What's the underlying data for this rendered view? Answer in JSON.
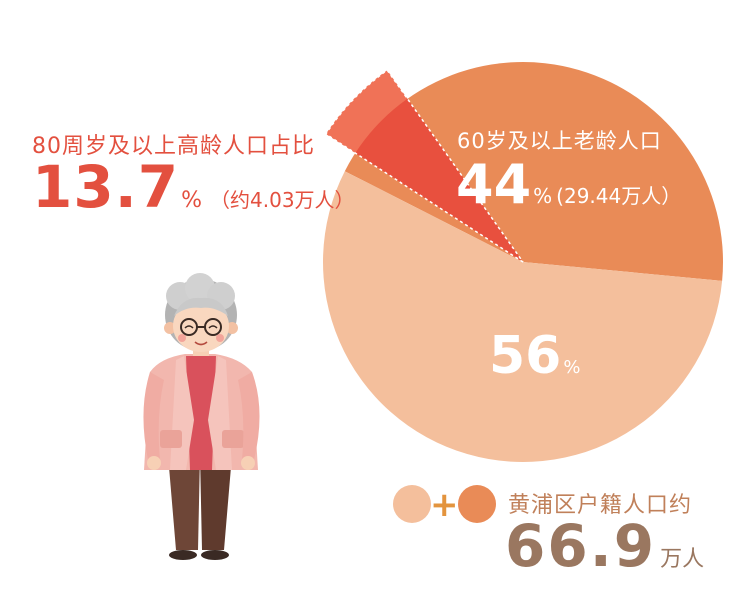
{
  "chart_data": {
    "type": "pie",
    "slices": [
      {
        "label": "60岁及以上老龄人口",
        "value": 44,
        "color": "#e98b57"
      },
      {
        "label": "",
        "value": 56,
        "color": "#f4bf9c"
      }
    ],
    "sub_slice": {
      "label": "80周岁及以上高龄人口占比",
      "value": 13.7,
      "color": "#ef6a4e"
    }
  },
  "annotations": {
    "elderly80": {
      "title": "80周岁及以上高龄人口占比",
      "value": "13.7",
      "unit": "%",
      "extra": "（约4.03万人）"
    },
    "elderly60": {
      "title": "60岁及以上老龄人口",
      "value": "44",
      "unit": "%",
      "extra": "(29.44万人）"
    },
    "young": {
      "value": "56",
      "unit": "%"
    },
    "total": {
      "label": "黄浦区户籍人口约",
      "value": "66.9",
      "unit": "万人"
    }
  },
  "legend": {
    "plus": "+"
  },
  "colors": {
    "young": "#f4bf9c",
    "elderly": "#e98b57",
    "elderly80": "#ef6a4e",
    "accent_text": "#e3503f",
    "total_text": "#9a7760"
  },
  "illustration": {
    "icon": "elderly-person-icon"
  }
}
